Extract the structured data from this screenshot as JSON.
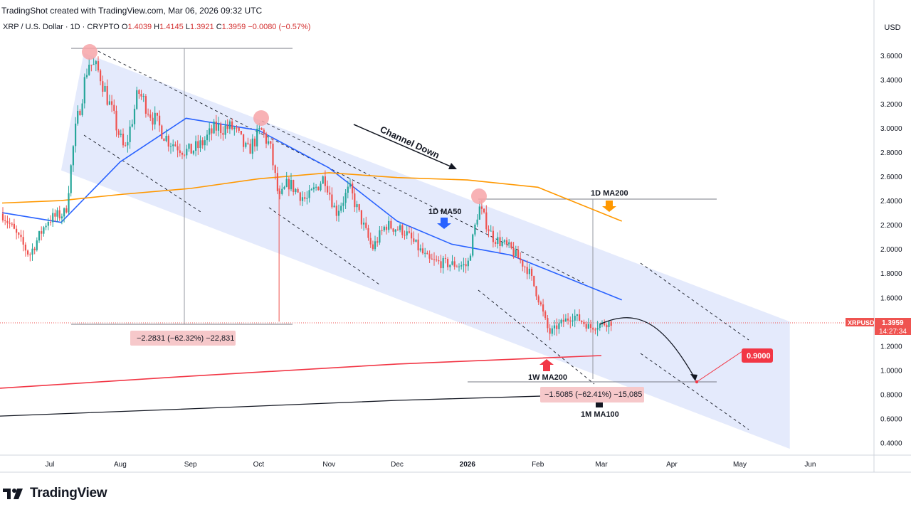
{
  "header": {
    "credit": "TradingShot created with TradingView.com, Mar 06, 2026 09:32 UTC",
    "symbol_desc": "XRP / U.S. Dollar · 1D · CRYPTO",
    "open_label": "O",
    "open": "1.4039",
    "high_label": "H",
    "high": "1.4145",
    "low_label": "L",
    "low": "1.3921",
    "close_label": "C",
    "close": "1.3959",
    "change": "−0.0080 (−0.57%)",
    "currency": "USD"
  },
  "price_tag": {
    "symbol": "XRPUSD",
    "price": "1.3959",
    "countdown": "14:27:34"
  },
  "logo": "TradingView",
  "colors": {
    "channel": "#dfe6fb",
    "up": "#26a69a",
    "down": "#ef5350",
    "ma50": "#2962ff",
    "ma200_1d": "#ff9800",
    "ma200_1w": "#f23645",
    "ma100_1m": "#131722",
    "marker": "#f7a5a8"
  },
  "chart_data": {
    "type": "candlestick",
    "title": "XRP / U.S. Dollar · 1D · CRYPTO",
    "y_ticks": [
      "3.6000",
      "3.4000",
      "3.2000",
      "3.0000",
      "2.8000",
      "2.6000",
      "2.4000",
      "2.2000",
      "2.0000",
      "1.8000",
      "1.6000",
      "1.4000",
      "1.2000",
      "1.0000",
      "0.8000",
      "0.6000",
      "0.4000"
    ],
    "x_ticks": [
      {
        "label": "Jul",
        "date": "2025-07-01"
      },
      {
        "label": "Aug",
        "date": "2025-08-01"
      },
      {
        "label": "Sep",
        "date": "2025-09-01"
      },
      {
        "label": "Oct",
        "date": "2025-10-01"
      },
      {
        "label": "Nov",
        "date": "2025-11-01"
      },
      {
        "label": "Dec",
        "date": "2025-12-01"
      },
      {
        "label": "2026",
        "date": "2026-01-01"
      },
      {
        "label": "Feb",
        "date": "2026-02-01"
      },
      {
        "label": "Mar",
        "date": "2026-03-01"
      },
      {
        "label": "Apr",
        "date": "2026-04-01"
      },
      {
        "label": "May",
        "date": "2026-05-01"
      },
      {
        "label": "Jun",
        "date": "2026-06-01"
      }
    ],
    "price_path": [
      [
        "2025-06-10",
        2.3
      ],
      [
        "2025-06-22",
        1.95
      ],
      [
        "2025-06-30",
        2.24
      ],
      [
        "2025-07-08",
        2.3
      ],
      [
        "2025-07-12",
        2.95
      ],
      [
        "2025-07-18",
        3.55
      ],
      [
        "2025-07-23",
        3.45
      ],
      [
        "2025-07-28",
        3.15
      ],
      [
        "2025-08-03",
        2.8
      ],
      [
        "2025-08-09",
        3.3
      ],
      [
        "2025-08-15",
        3.1
      ],
      [
        "2025-08-22",
        2.9
      ],
      [
        "2025-08-31",
        2.8
      ],
      [
        "2025-09-05",
        2.85
      ],
      [
        "2025-09-12",
        3.0
      ],
      [
        "2025-09-20",
        3.0
      ],
      [
        "2025-09-26",
        2.8
      ],
      [
        "2025-10-02",
        2.98
      ],
      [
        "2025-10-06",
        2.85
      ],
      [
        "2025-10-10",
        2.4
      ],
      [
        "2025-10-14",
        2.55
      ],
      [
        "2025-10-22",
        2.4
      ],
      [
        "2025-10-30",
        2.6
      ],
      [
        "2025-11-04",
        2.3
      ],
      [
        "2025-11-10",
        2.5
      ],
      [
        "2025-11-20",
        2.0
      ],
      [
        "2025-11-26",
        2.2
      ],
      [
        "2025-12-04",
        2.15
      ],
      [
        "2025-12-15",
        1.9
      ],
      [
        "2025-12-22",
        1.88
      ],
      [
        "2026-01-01",
        1.86
      ],
      [
        "2026-01-06",
        2.35
      ],
      [
        "2026-01-12",
        2.1
      ],
      [
        "2026-01-20",
        2.0
      ],
      [
        "2026-01-28",
        1.82
      ],
      [
        "2026-02-02",
        1.55
      ],
      [
        "2026-02-06",
        1.3
      ],
      [
        "2026-02-12",
        1.4
      ],
      [
        "2026-02-17",
        1.45
      ],
      [
        "2026-02-24",
        1.35
      ],
      [
        "2026-03-01",
        1.38
      ],
      [
        "2026-03-06",
        1.3959
      ]
    ],
    "series": [
      {
        "name": "1D MA50",
        "points": [
          [
            "2025-06-10",
            2.3
          ],
          [
            "2025-07-06",
            2.22
          ],
          [
            "2025-08-01",
            2.72
          ],
          [
            "2025-08-30",
            3.08
          ],
          [
            "2025-10-01",
            2.98
          ],
          [
            "2025-11-01",
            2.67
          ],
          [
            "2025-12-01",
            2.23
          ],
          [
            "2025-12-25",
            2.04
          ],
          [
            "2026-01-20",
            1.95
          ],
          [
            "2026-03-10",
            1.58
          ]
        ]
      },
      {
        "name": "1D MA200",
        "points": [
          [
            "2025-06-10",
            2.38
          ],
          [
            "2025-07-06",
            2.4
          ],
          [
            "2025-08-01",
            2.45
          ],
          [
            "2025-09-01",
            2.5
          ],
          [
            "2025-10-01",
            2.58
          ],
          [
            "2025-11-01",
            2.63
          ],
          [
            "2025-12-01",
            2.59
          ],
          [
            "2026-01-01",
            2.57
          ],
          [
            "2026-02-01",
            2.51
          ],
          [
            "2026-03-10",
            2.23
          ]
        ]
      },
      {
        "name": "1W MA200",
        "points": [
          [
            "2025-06-01",
            0.85
          ],
          [
            "2025-09-01",
            0.95
          ],
          [
            "2025-12-01",
            1.05
          ],
          [
            "2026-03-01",
            1.12
          ]
        ]
      },
      {
        "name": "1M MA100",
        "points": [
          [
            "2025-06-01",
            0.62
          ],
          [
            "2025-09-01",
            0.68
          ],
          [
            "2025-12-01",
            0.75
          ],
          [
            "2026-03-01",
            0.8
          ]
        ]
      }
    ],
    "channel": {
      "upper": [
        [
          "2025-07-16",
          3.62
        ],
        [
          "2026-05-23",
          1.4
        ]
      ],
      "lower": [
        [
          "2025-07-06",
          2.65
        ],
        [
          "2026-05-23",
          0.35
        ]
      ]
    },
    "annotations": {
      "channel_label": "Channel Down",
      "ma50_label": "1D MA50",
      "ma200_label": "1D MA200",
      "w_ma200_label": "1W MA200",
      "m_ma100_label": "1M MA100",
      "measure1": "−2.2831 (−62.32%) −22,831",
      "measure2": "−1.5085 (−62.41%) −15,085",
      "target": "0.9000",
      "target_value": 0.9
    }
  }
}
